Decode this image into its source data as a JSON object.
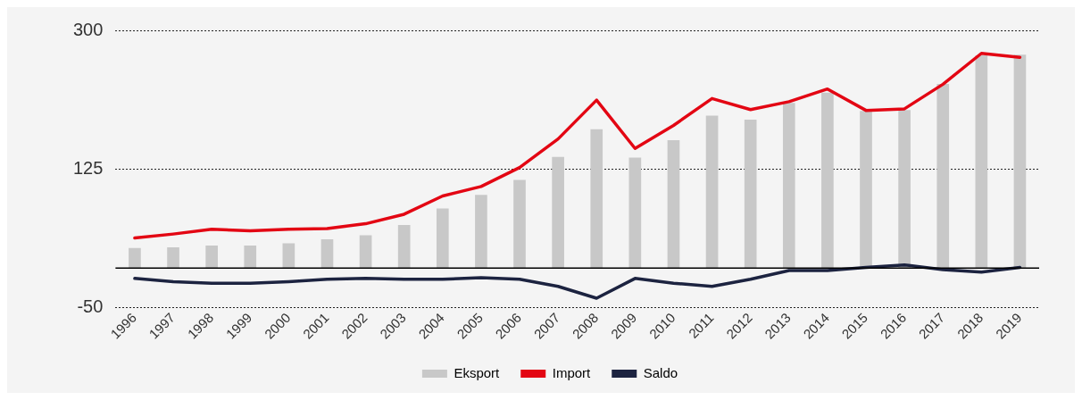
{
  "chart_data": {
    "type": "bar",
    "categories": [
      "1996",
      "1997",
      "1998",
      "1999",
      "2000",
      "2001",
      "2002",
      "2003",
      "2004",
      "2005",
      "2006",
      "2007",
      "2008",
      "2009",
      "2010",
      "2011",
      "2012",
      "2013",
      "2014",
      "2015",
      "2016",
      "2017",
      "2018",
      "2019"
    ],
    "series": [
      {
        "name": "Eksport",
        "color": "#c8c8c8",
        "values": [
          25,
          26,
          28,
          28,
          31,
          36,
          41,
          54,
          75,
          92,
          111,
          140,
          175,
          139,
          161,
          192,
          187,
          208,
          221,
          198,
          199,
          232,
          268,
          269
        ]
      },
      {
        "name": "Import",
        "type": "line",
        "color": "#e30613",
        "values": [
          38,
          43,
          49,
          47,
          49,
          50,
          56,
          68,
          91,
          103,
          127,
          163,
          212,
          151,
          180,
          214,
          200,
          210,
          226,
          199,
          201,
          232,
          271,
          266
        ]
      },
      {
        "name": "Saldo",
        "type": "line",
        "color": "#1c2340",
        "values": [
          -13,
          -17,
          -19,
          -19,
          -17,
          -14,
          -13,
          -14,
          -14,
          -12,
          -14,
          -23,
          -38,
          -13,
          -19,
          -23,
          -14,
          -3,
          -3,
          1,
          4,
          -2,
          -5,
          1
        ]
      }
    ],
    "ylim": [
      -50,
      300
    ],
    "yticks": [
      -50,
      125,
      300
    ],
    "grid": "y",
    "legend": "bottom",
    "marker": "none",
    "line_style": "solid",
    "ref_lines": [
      {
        "axis": "y",
        "value": 0,
        "color": "#000000",
        "line_style": "solid"
      }
    ]
  }
}
